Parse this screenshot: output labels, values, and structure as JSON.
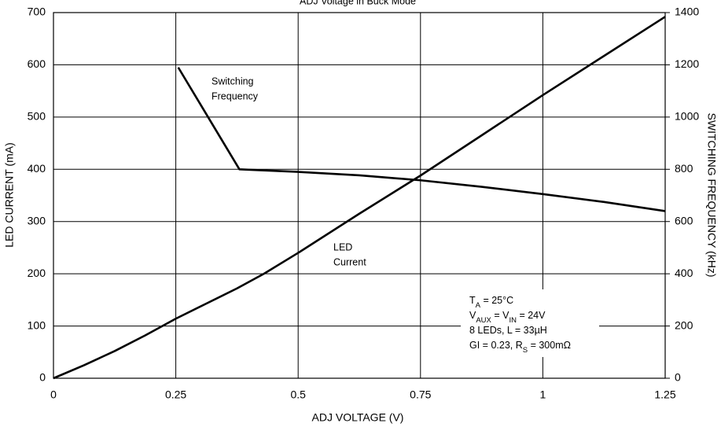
{
  "chart_data": {
    "type": "line",
    "title": "ADJ Voltage in Buck Mode",
    "xlabel": "ADJ VOLTAGE (V)",
    "ylabel": "LED CURRENT (mA)",
    "y2label": "SWITCHING FREQUENCY (kHz)",
    "xlim": [
      0,
      1.25
    ],
    "xticks": [
      0,
      0.25,
      0.5,
      0.75,
      1,
      1.25
    ],
    "ylim": [
      0,
      700
    ],
    "yticks": [
      0,
      100,
      200,
      300,
      400,
      500,
      600,
      700
    ],
    "y2lim": [
      0,
      1400
    ],
    "y2ticks": [
      0,
      200,
      400,
      600,
      800,
      1000,
      1200,
      1400
    ],
    "grid": true,
    "series": [
      {
        "label": [
          "LED",
          "Current"
        ],
        "color": "#000000",
        "x": [
          0,
          0.0625,
          0.125,
          0.1875,
          0.25,
          0.3125,
          0.375,
          0.43,
          0.5,
          0.625,
          0.75,
          0.875,
          1.0,
          1.125,
          1.25
        ],
        "values": [
          0,
          25,
          52,
          82,
          114,
          143,
          172,
          200,
          240,
          315,
          388,
          465,
          542,
          617,
          692
        ]
      },
      {
        "label": [
          "Switching",
          "Frequency"
        ],
        "color": "#000000",
        "axis": "y2",
        "x": [
          0.255,
          0.38,
          0.5,
          0.625,
          0.75,
          0.875,
          1.0,
          1.125,
          1.25
        ],
        "values": [
          1190,
          800,
          790,
          777,
          758,
          733,
          705,
          675,
          640
        ]
      }
    ],
    "annotation": [
      [
        {
          "t": "T"
        },
        {
          "sub": "A"
        },
        {
          "t": " = 25°C"
        }
      ],
      [
        {
          "t": "V"
        },
        {
          "sub": "AUX"
        },
        {
          "t": " = V"
        },
        {
          "sub": "IN"
        },
        {
          "t": " = 24V"
        }
      ],
      [
        {
          "t": "8 LEDs, L = 33µH"
        }
      ],
      [
        {
          "t": "GI = 0.23, R"
        },
        {
          "sub": "S"
        },
        {
          "t": " = 300mΩ"
        }
      ]
    ]
  }
}
